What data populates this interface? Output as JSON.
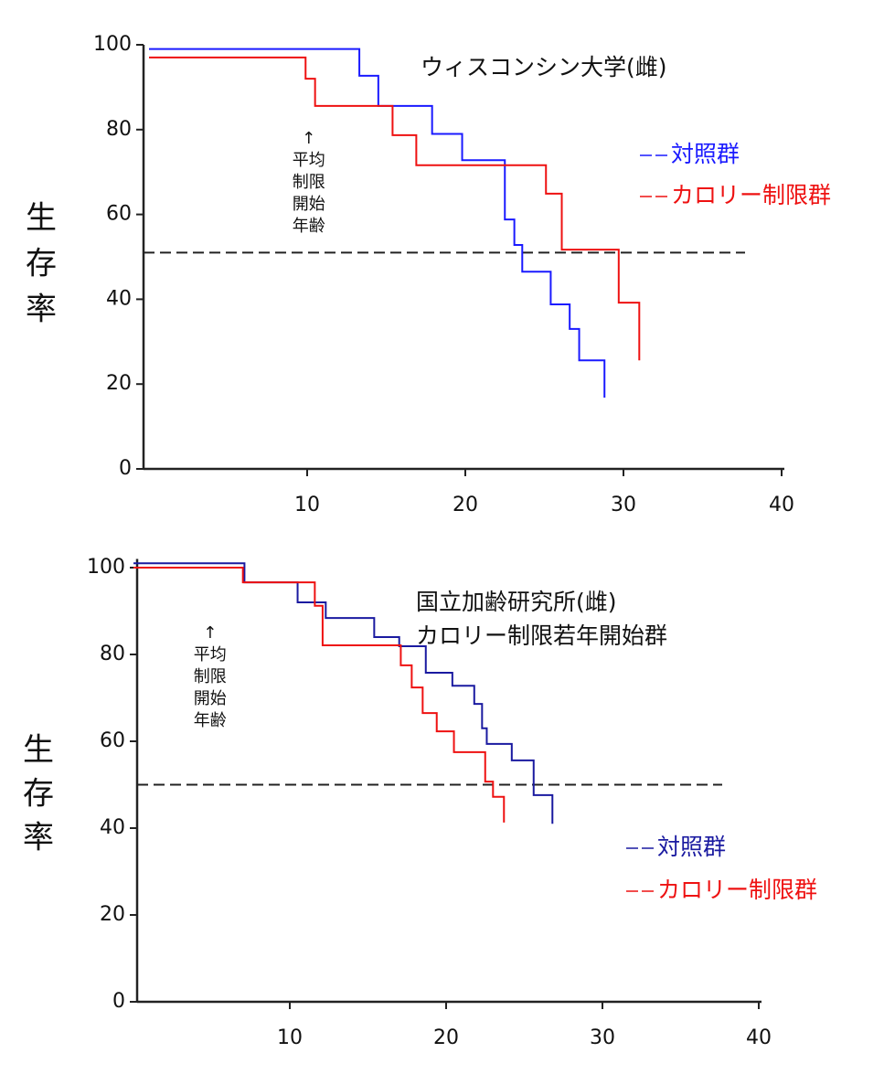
{
  "chart_data": [
    {
      "type": "line",
      "step": "post",
      "title": "ウィスコンシン大学(雌)",
      "y_label": "生存率",
      "xlim": [
        0,
        40
      ],
      "xticks": [
        10,
        20,
        30,
        40
      ],
      "ylim": [
        0,
        100
      ],
      "yticks": [
        0,
        20,
        40,
        60,
        80,
        100
      ],
      "hline": 51,
      "legend": "right",
      "annotation": {
        "x": 10.1,
        "lines": [
          "↑",
          "平均",
          "制限",
          "開始",
          "年齢"
        ]
      },
      "series": [
        {
          "name": "対照群",
          "color": "#1a1aff",
          "x": [
            0,
            13.3,
            14.5,
            17.9,
            19.8,
            22.5,
            23.1,
            23.6,
            25.4,
            26.6,
            27.2,
            28.8
          ],
          "values": [
            99,
            92.7,
            85.6,
            79,
            72.8,
            58.8,
            52.8,
            46.5,
            38.8,
            33,
            25.6,
            16.8
          ]
        },
        {
          "name": "カロリー制限群",
          "color": "#ee1111",
          "x": [
            0,
            9.9,
            10.5,
            15.4,
            16.9,
            25.1,
            26.1,
            29.7,
            31
          ],
          "values": [
            97,
            92,
            85.6,
            78.7,
            71.6,
            64.9,
            51.7,
            39.2,
            25.6
          ]
        }
      ]
    },
    {
      "type": "line",
      "step": "post",
      "title": "国立加齢研究所(雌)",
      "subtitle": "カロリー制限若年開始群",
      "y_label": "生存率",
      "xlim": [
        0,
        40
      ],
      "xticks": [
        10,
        20,
        30,
        40
      ],
      "ylim": [
        0,
        102
      ],
      "yticks": [
        0,
        20,
        40,
        60,
        80,
        100
      ],
      "hline": 50,
      "legend": "right",
      "annotation": {
        "x": 4.9,
        "lines": [
          "↑",
          "平均",
          "制限",
          "開始",
          "年齢"
        ]
      },
      "series": [
        {
          "name": "対照群",
          "color": "#1a1aa0",
          "x": [
            0,
            7.1,
            10.5,
            12.3,
            15.4,
            17.0,
            18.7,
            20.4,
            21.8,
            22.3,
            22.6,
            24.2,
            25.6,
            26.8
          ],
          "values": [
            101,
            96.6,
            92,
            88.4,
            84,
            81.9,
            75.8,
            72.8,
            68.6,
            63,
            59.4,
            55.6,
            47.6,
            41
          ]
        },
        {
          "name": "カロリー制限群",
          "color": "#ee1111",
          "x": [
            0,
            7.0,
            11.6,
            12.1,
            17.1,
            17.8,
            18.5,
            19.4,
            20.5,
            22.5,
            23.0,
            23.7
          ],
          "values": [
            100,
            96.6,
            91.2,
            82.1,
            77.5,
            72.4,
            66.5,
            62.3,
            57.5,
            50.7,
            47.2,
            41.3
          ]
        }
      ]
    }
  ]
}
